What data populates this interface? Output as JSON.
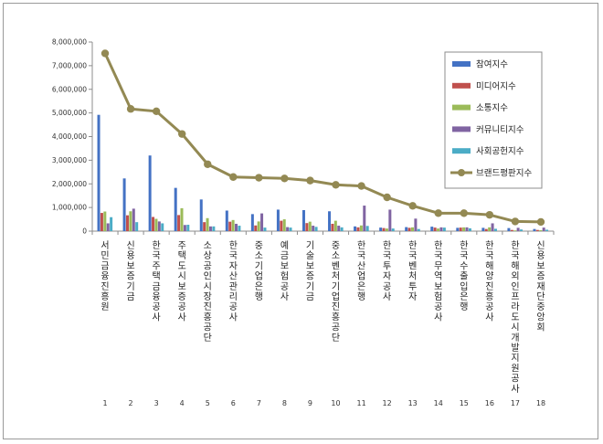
{
  "chart_data": {
    "type": "bar",
    "title": "",
    "xlabel": "",
    "ylabel": "",
    "ylim": [
      0,
      8000000
    ],
    "yticks": [
      "0",
      "1,000,000",
      "2,000,000",
      "3,000,000",
      "4,000,000",
      "5,000,000",
      "6,000,000",
      "7,000,000",
      "8,000,000"
    ],
    "x": [
      "1",
      "2",
      "3",
      "4",
      "5",
      "6",
      "7",
      "8",
      "9",
      "10",
      "11",
      "12",
      "13",
      "14",
      "15",
      "16",
      "17",
      "18"
    ],
    "categories": [
      "서민금융진흥원",
      "신용보증기금",
      "한국주택금융공사",
      "주택도시보증공사",
      "소상공인시장진흥공단",
      "한국자산관리공사",
      "중소기업은행",
      "예금보험공사",
      "기술보증기금",
      "중소벤처기업진흥공단",
      "한국산업은행",
      "한국투자공사",
      "한국벤처투자",
      "한국무역보험공사",
      "한국수출입은행",
      "한국해양진흥공사",
      "한국해외인프라도시개발지원공사",
      "신용보증재단중앙회"
    ],
    "legend_position": "top-right",
    "grid": false,
    "series": [
      {
        "name": "참여지수",
        "kind": "bar",
        "color": "#4472c4",
        "values": [
          4920000,
          2230000,
          3200000,
          1830000,
          1340000,
          870000,
          720000,
          910000,
          890000,
          840000,
          200000,
          150000,
          170000,
          190000,
          140000,
          140000,
          130000,
          90000
        ]
      },
      {
        "name": "미디어지수",
        "kind": "bar",
        "color": "#c0504d",
        "values": [
          770000,
          670000,
          600000,
          680000,
          380000,
          400000,
          240000,
          440000,
          340000,
          310000,
          160000,
          130000,
          140000,
          150000,
          150000,
          90000,
          50000,
          50000
        ]
      },
      {
        "name": "소통지수",
        "kind": "bar",
        "color": "#9bbb59",
        "values": [
          830000,
          840000,
          520000,
          970000,
          550000,
          470000,
          410000,
          500000,
          400000,
          440000,
          240000,
          110000,
          160000,
          110000,
          160000,
          160000,
          30000,
          40000
        ]
      },
      {
        "name": "커뮤니티지수",
        "kind": "bar",
        "color": "#8064a2",
        "values": [
          330000,
          950000,
          410000,
          260000,
          200000,
          310000,
          750000,
          170000,
          230000,
          230000,
          1080000,
          910000,
          530000,
          160000,
          160000,
          330000,
          140000,
          150000
        ]
      },
      {
        "name": "사회공헌지수",
        "kind": "bar",
        "color": "#4bacc6",
        "values": [
          590000,
          380000,
          330000,
          270000,
          200000,
          230000,
          150000,
          150000,
          180000,
          160000,
          220000,
          110000,
          90000,
          150000,
          120000,
          100000,
          70000,
          60000
        ]
      },
      {
        "name": "브랜드평판지수",
        "kind": "line",
        "color": "#938953",
        "values": [
          7520000,
          5170000,
          5070000,
          4110000,
          2830000,
          2290000,
          2260000,
          2230000,
          2140000,
          1960000,
          1910000,
          1430000,
          1070000,
          760000,
          760000,
          690000,
          410000,
          390000
        ]
      }
    ]
  }
}
